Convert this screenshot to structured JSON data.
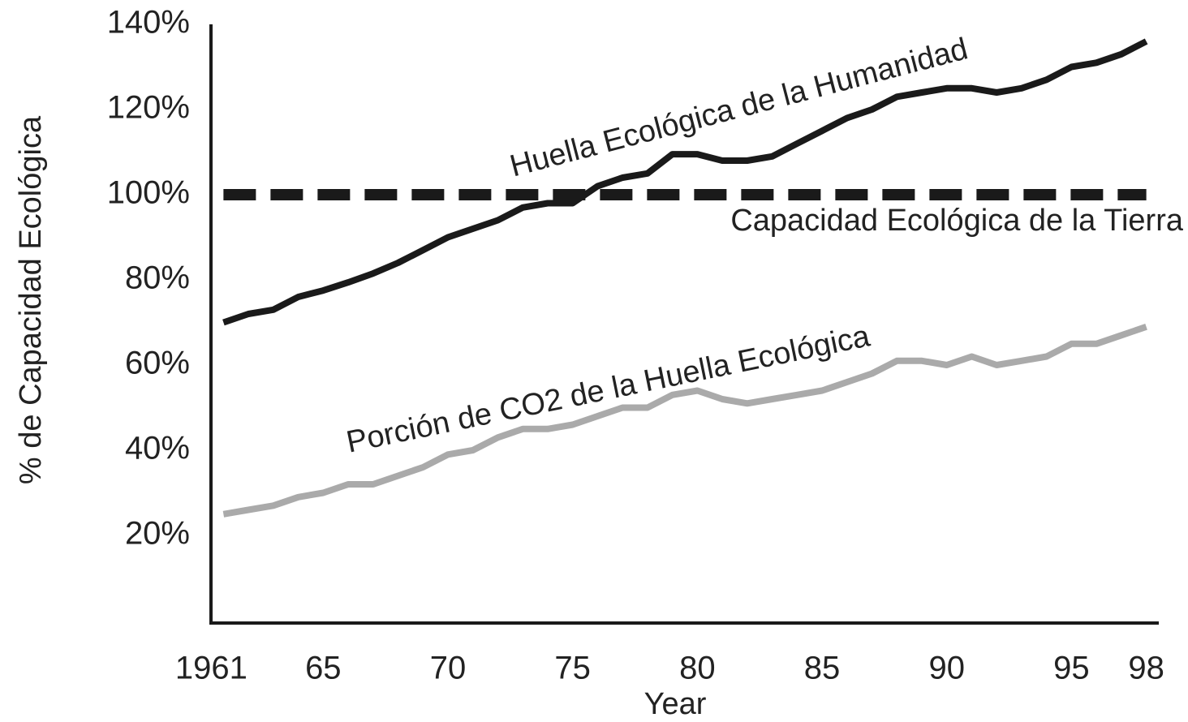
{
  "chart_data": {
    "type": "line",
    "ylabel": "% de Capacidad Ecológica",
    "xlabel": "Year",
    "x": [
      1961,
      1962,
      1963,
      1964,
      1965,
      1966,
      1967,
      1968,
      1969,
      1970,
      1971,
      1972,
      1973,
      1974,
      1975,
      1976,
      1977,
      1978,
      1979,
      1980,
      1981,
      1982,
      1983,
      1984,
      1985,
      1986,
      1987,
      1988,
      1989,
      1990,
      1991,
      1992,
      1993,
      1994,
      1995,
      1996,
      1997,
      1998
    ],
    "series": [
      {
        "name": "Huella Ecológica de la Humanidad",
        "color": "#1a1a1a",
        "values": [
          70,
          72,
          73,
          76,
          77.5,
          79.4,
          81.5,
          84,
          87,
          90,
          92,
          94,
          97,
          98,
          98,
          102,
          104,
          105,
          109.5,
          109.5,
          108,
          108,
          109,
          112,
          115,
          118,
          120,
          123,
          124,
          125,
          125,
          124,
          125,
          127,
          130,
          131,
          133,
          136
        ]
      },
      {
        "name": "Porción de CO2 de la Huella Ecológica",
        "color": "#aaaaaa",
        "values": [
          25,
          26,
          27,
          29,
          30,
          32,
          32,
          34,
          36,
          39,
          40,
          43,
          45,
          45,
          46,
          48,
          50,
          50,
          53,
          54,
          52,
          51,
          52,
          53,
          54,
          56,
          58,
          61,
          61,
          60,
          62,
          60,
          61,
          62,
          65,
          65,
          67,
          69
        ]
      }
    ],
    "hline": {
      "value": 100,
      "label": "Capacidad Ecológica de la Tierra",
      "color": "#1a1a1a"
    },
    "xlim": [
      1960.5,
      1998.5
    ],
    "xticks": [
      1961,
      {
        "value": 1965,
        "label": "65"
      },
      {
        "value": 1970,
        "label": "70"
      },
      {
        "value": 1975,
        "label": "75"
      },
      {
        "value": 1980,
        "label": "80"
      },
      {
        "value": 1985,
        "label": "85"
      },
      {
        "value": 1990,
        "label": "90"
      },
      {
        "value": 1995,
        "label": "95"
      },
      {
        "value": 1998,
        "label": "98"
      }
    ],
    "ylim": [
      0,
      140
    ],
    "yticks": [
      {
        "value": 20,
        "label": "20%"
      },
      {
        "value": 40,
        "label": "40%"
      },
      {
        "value": 60,
        "label": "60%"
      },
      {
        "value": 80,
        "label": "80%"
      },
      {
        "value": 100,
        "label": "100%"
      },
      {
        "value": 120,
        "label": "120%"
      },
      {
        "value": 140,
        "label": "140%"
      }
    ]
  }
}
